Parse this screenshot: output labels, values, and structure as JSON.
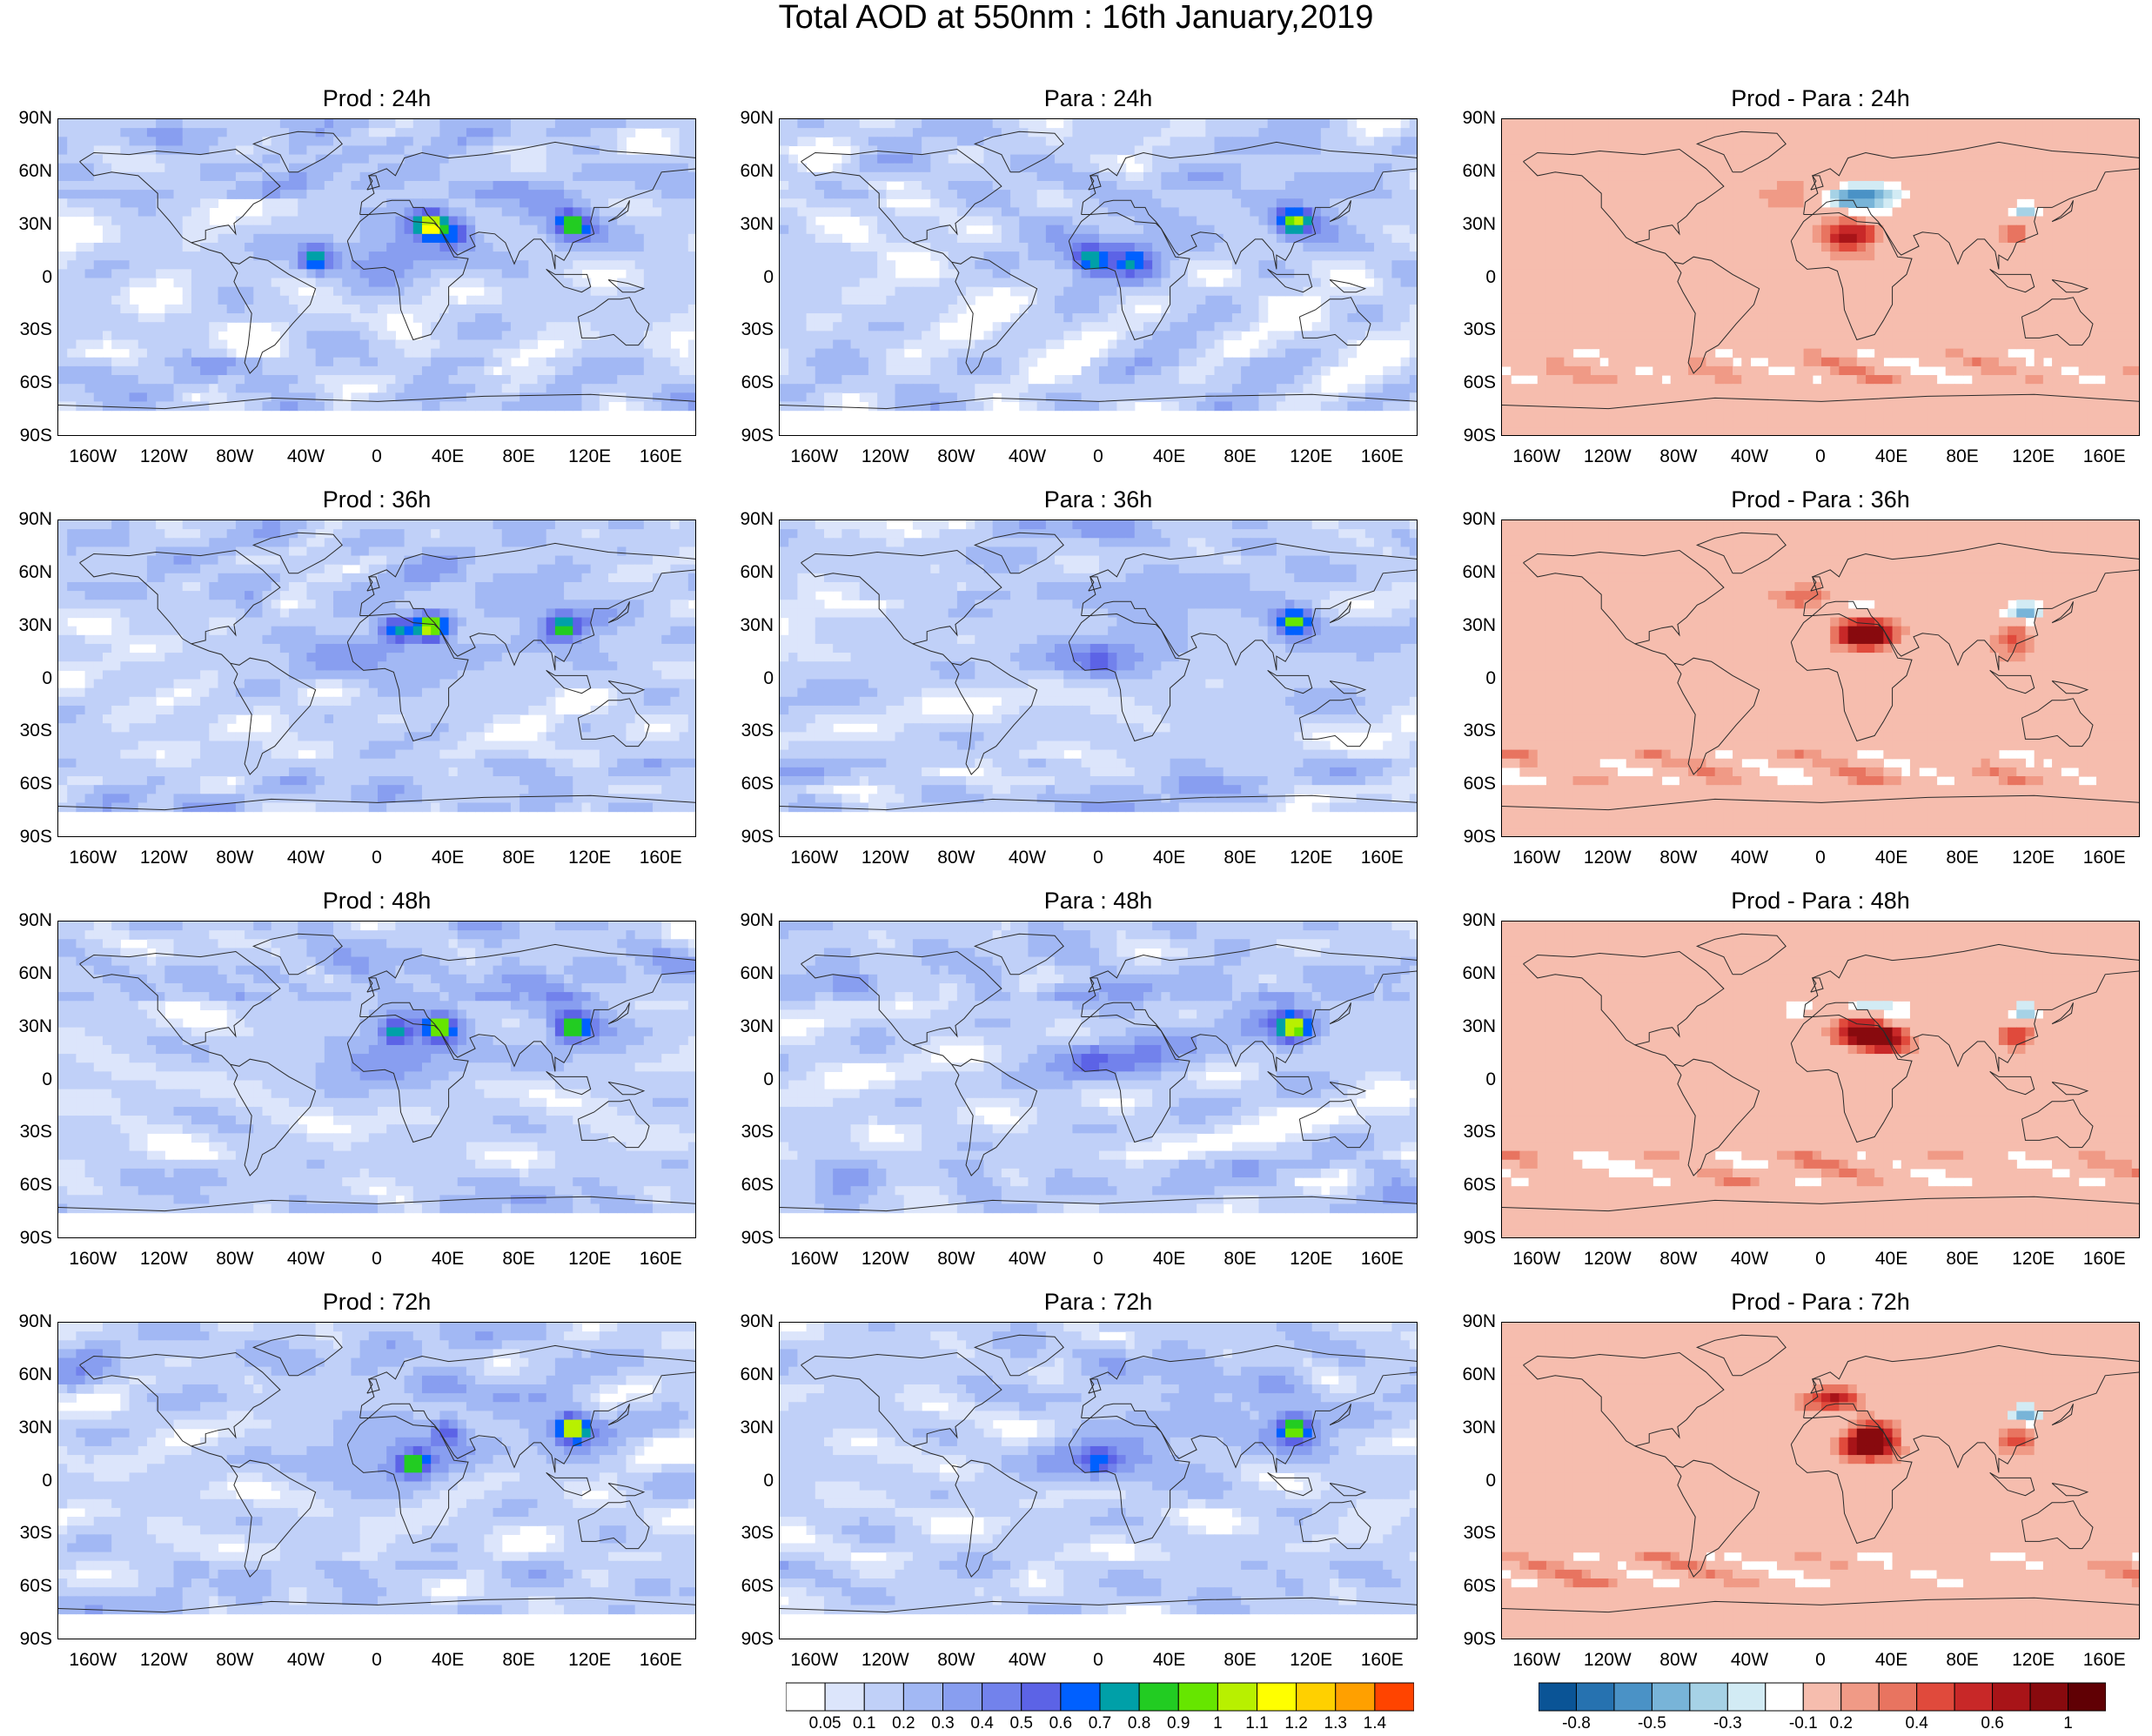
{
  "title": "Total AOD at 550nm : 16th January,2019",
  "panels": [
    {
      "title": "Prod : 24h",
      "kind": "aod",
      "seed": 11,
      "hot": [
        [
          30,
          30,
          1.35
        ],
        [
          -35,
          10,
          1.0
        ],
        [
          110,
          30,
          1.0
        ],
        [
          45,
          25,
          0.8
        ]
      ]
    },
    {
      "title": "Para : 24h",
      "kind": "aod",
      "seed": 12,
      "hot": [
        [
          110,
          32,
          1.1
        ],
        [
          -5,
          10,
          0.85
        ],
        [
          20,
          10,
          0.7
        ]
      ]
    },
    {
      "title": "Prod - Para : 24h",
      "kind": "diff",
      "seed": 13
    },
    {
      "title": "Prod : 36h",
      "kind": "aod",
      "seed": 21,
      "hot": [
        [
          30,
          30,
          1.3
        ],
        [
          10,
          28,
          0.9
        ],
        [
          105,
          30,
          0.95
        ],
        [
          -70,
          40,
          0.6
        ]
      ]
    },
    {
      "title": "Para : 36h",
      "kind": "aod",
      "seed": 22,
      "hot": [
        [
          110,
          33,
          1.1
        ],
        [
          0,
          10,
          0.6
        ],
        [
          -5,
          50,
          0.4
        ]
      ]
    },
    {
      "title": "Prod - Para : 36h",
      "kind": "diff",
      "seed": 23
    },
    {
      "title": "Prod : 48h",
      "kind": "aod",
      "seed": 31,
      "hot": [
        [
          35,
          30,
          1.2
        ],
        [
          10,
          28,
          0.9
        ],
        [
          110,
          30,
          1.1
        ],
        [
          -70,
          40,
          0.45
        ]
      ]
    },
    {
      "title": "Para : 48h",
      "kind": "aod",
      "seed": 32,
      "hot": [
        [
          110,
          30,
          1.2
        ],
        [
          -5,
          12,
          0.6
        ],
        [
          0,
          55,
          0.5
        ]
      ]
    },
    {
      "title": "Prod - Para : 48h",
      "kind": "diff",
      "seed": 33
    },
    {
      "title": "Prod : 72h",
      "kind": "aod",
      "seed": 41,
      "hot": [
        [
          110,
          30,
          1.35
        ],
        [
          20,
          10,
          1.0
        ],
        [
          40,
          28,
          0.8
        ],
        [
          -170,
          55,
          0.5
        ]
      ]
    },
    {
      "title": "Para : 72h",
      "kind": "aod",
      "seed": 42,
      "hot": [
        [
          110,
          30,
          1.2
        ],
        [
          0,
          10,
          0.75
        ]
      ]
    },
    {
      "title": "Prod - Para : 72h",
      "kind": "diff",
      "seed": 43
    }
  ],
  "lat_labels": [
    "90N",
    "60N",
    "30N",
    "0",
    "30S",
    "60S",
    "90S"
  ],
  "lon_labels": [
    "160W",
    "120W",
    "80W",
    "40W",
    "0",
    "40E",
    "80E",
    "120E",
    "160E"
  ],
  "aod_colorbar": {
    "labels": [
      "0.05",
      "0.1",
      "0.2",
      "0.3",
      "0.4",
      "0.5",
      "0.6",
      "0.7",
      "0.8",
      "0.9",
      "1",
      "1.1",
      "1.2",
      "1.3",
      "1.4"
    ],
    "colors": [
      "#ffffff",
      "#dce5fb",
      "#c0d0f8",
      "#a2b8f4",
      "#889ef0",
      "#7282ec",
      "#5c63e6",
      "#0060ff",
      "#00a0a8",
      "#22cc22",
      "#66e600",
      "#b8f000",
      "#ffff00",
      "#ffd000",
      "#ffa000",
      "#ff4400"
    ]
  },
  "diff_colorbar": {
    "labels": [
      "-0.8",
      "-0.5",
      "-0.3",
      "-0.1",
      "0.2",
      "0.4",
      "0.6",
      "1"
    ],
    "colors": [
      "#0a5496",
      "#2672b0",
      "#4a92c6",
      "#78b4d8",
      "#a6d2e6",
      "#d2ebf4",
      "#ffffff",
      "#f6bdae",
      "#f09a86",
      "#e87460",
      "#e04a3c",
      "#c82828",
      "#a81418",
      "#880a0e",
      "#600004"
    ]
  },
  "colors": {
    "axis": "#000000",
    "coast": "#2a2a2a"
  }
}
